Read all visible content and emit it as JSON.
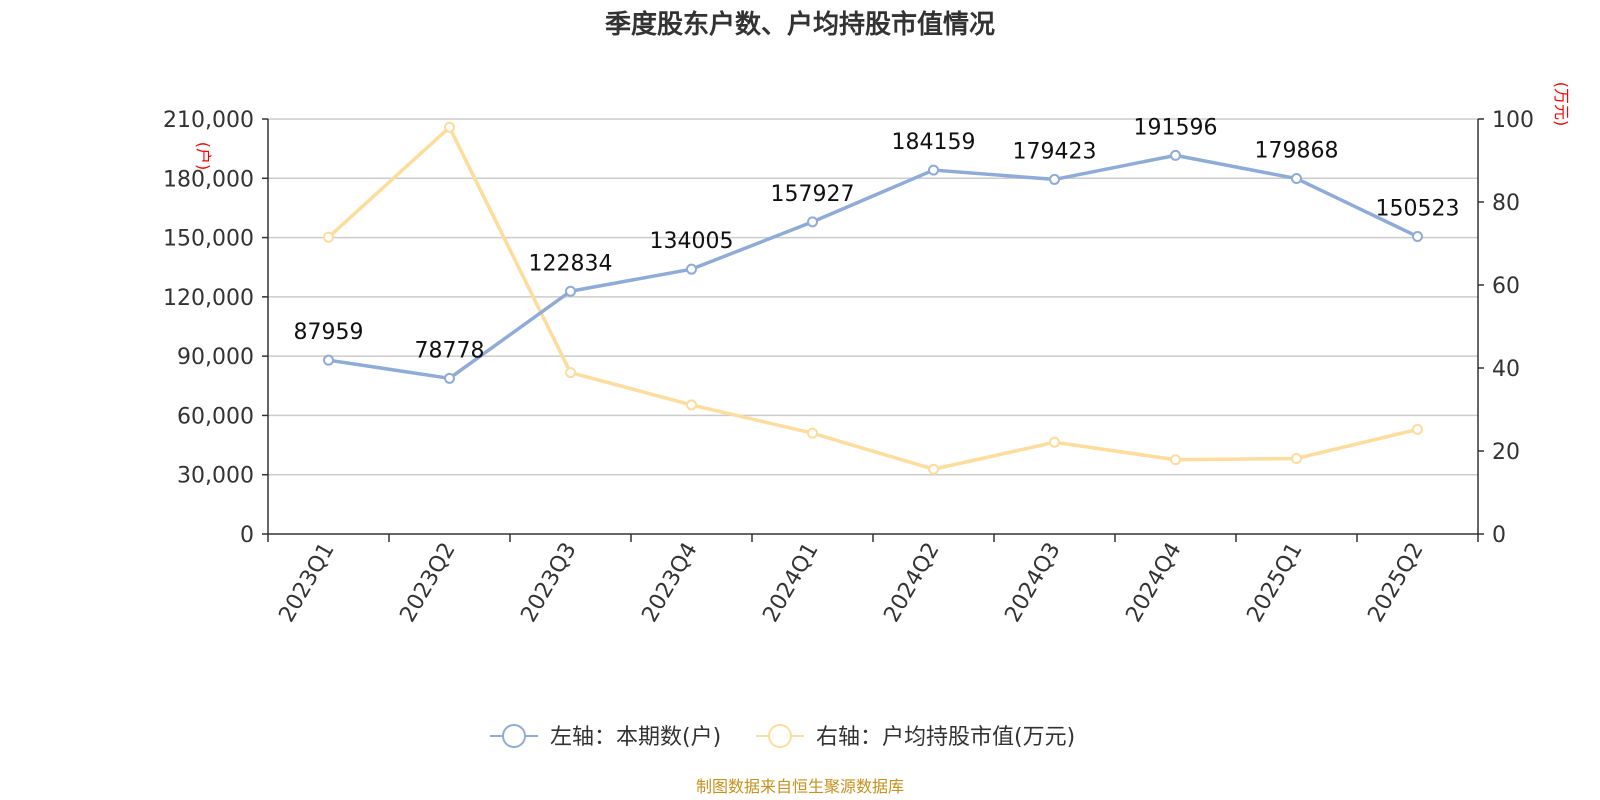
{
  "chart_data": {
    "type": "line",
    "title": "季度股东户数、户均持股市值情况",
    "source": "制图数据来自恒生聚源数据库",
    "categories": [
      "2023Q1",
      "2023Q2",
      "2023Q3",
      "2023Q4",
      "2024Q1",
      "2024Q2",
      "2024Q3",
      "2024Q4",
      "2025Q1",
      "2025Q2"
    ],
    "y_left": {
      "unit": "(户)",
      "range": [
        0,
        210000
      ],
      "ticks": [
        "0",
        "30,000",
        "60,000",
        "90,000",
        "120,000",
        "150,000",
        "180,000",
        "210,000"
      ]
    },
    "y_right": {
      "unit": "(万元)",
      "range": [
        0,
        100
      ],
      "ticks": [
        "0",
        "20",
        "40",
        "60",
        "80",
        "100"
      ]
    },
    "grid": true,
    "legend_position": "bottom",
    "series": [
      {
        "name": "左轴：本期数(户)",
        "axis": "left",
        "color": "#8eabd9",
        "show_labels": true,
        "values": [
          87959,
          78778,
          122834,
          134005,
          157927,
          184159,
          179423,
          191596,
          179868,
          150523
        ],
        "labels": [
          "87959",
          "78778",
          "122834",
          "134005",
          "157927",
          "184159",
          "179423",
          "191596",
          "179868",
          "150523"
        ]
      },
      {
        "name": "右轴：户均持股市值(万元)",
        "axis": "right",
        "color": "#fddc9c",
        "show_labels": false,
        "values": [
          71.5,
          98.0,
          38.9,
          31.1,
          24.3,
          15.6,
          22.1,
          17.9,
          18.2,
          25.2
        ]
      }
    ]
  }
}
